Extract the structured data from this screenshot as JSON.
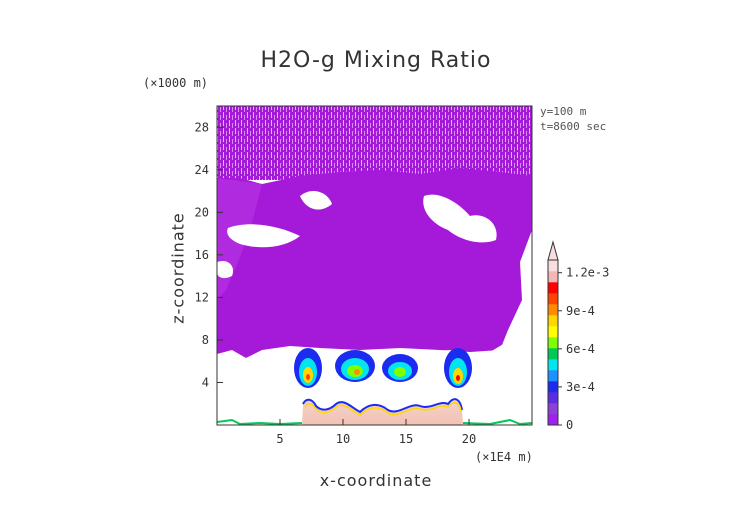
{
  "chart_data": {
    "type": "heatmap",
    "title": "H2O-g Mixing Ratio",
    "xlabel": "x-coordinate",
    "ylabel": "z-coordinate",
    "x_unit": "(×1E4 m)",
    "z_unit": "(×1000 m)",
    "annotations": [
      "y=100 m",
      "t=8600 sec"
    ],
    "xlim": [
      0,
      25
    ],
    "ylim": [
      0,
      30
    ],
    "x_ticks": [
      5,
      10,
      15,
      20
    ],
    "y_ticks": [
      4,
      8,
      12,
      16,
      20,
      24,
      28
    ],
    "colorbar": {
      "labels": [
        "1.2e-3",
        "9e-4",
        "6e-4",
        "3e-4",
        "0"
      ],
      "label_values": [
        0.0012,
        0.0009,
        0.0006,
        0.0003,
        0
      ],
      "range": [
        0,
        0.0013
      ],
      "colors": [
        "#a020f0",
        "#8e3fd8",
        "#5a2ee0",
        "#1b2cf0",
        "#1e90ff",
        "#00e5ee",
        "#00c957",
        "#7fff00",
        "#ffff00",
        "#ffd700",
        "#ff8c00",
        "#ff4500",
        "#ff0000",
        "#f4b6b6",
        "#f8dede"
      ]
    },
    "features": {
      "moist_layer_top_z": 20,
      "high_values_z_range": [
        3,
        7
      ],
      "terrain_x_range": [
        6.5,
        19.5
      ]
    }
  }
}
